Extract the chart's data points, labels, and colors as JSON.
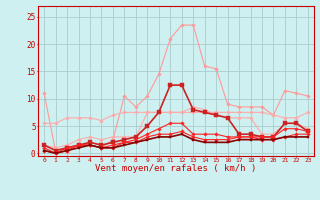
{
  "background_color": "#cef0f0",
  "grid_color": "#aacccc",
  "title": "Vent moyen/en rafales ( km/h )",
  "x_labels": [
    "0",
    "1",
    "2",
    "3",
    "4",
    "5",
    "6",
    "7",
    "8",
    "9",
    "10",
    "11",
    "12",
    "13",
    "14",
    "15",
    "16",
    "17",
    "18",
    "19",
    "20",
    "21",
    "22",
    "23"
  ],
  "ylim": [
    -0.5,
    27
  ],
  "yticks": [
    0,
    5,
    10,
    15,
    20,
    25
  ],
  "series": [
    {
      "color": "#ff9999",
      "lw": 0.8,
      "marker": "D",
      "ms": 1.8,
      "y": [
        11.0,
        0.3,
        0.3,
        1.5,
        1.5,
        1.0,
        2.5,
        10.5,
        8.5,
        10.5,
        14.5,
        21.0,
        23.5,
        23.5,
        16.0,
        15.5,
        9.0,
        8.5,
        8.5,
        8.5,
        7.0,
        11.5,
        11.0,
        10.5
      ]
    },
    {
      "color": "#ffaaaa",
      "lw": 0.8,
      "marker": "D",
      "ms": 1.8,
      "y": [
        5.5,
        5.5,
        6.5,
        6.5,
        6.5,
        6.0,
        7.0,
        7.5,
        7.5,
        7.5,
        7.5,
        7.5,
        7.5,
        7.5,
        7.5,
        7.5,
        7.5,
        7.5,
        7.5,
        7.5,
        7.0,
        6.5,
        6.5,
        7.5
      ]
    },
    {
      "color": "#ffaaaa",
      "lw": 0.8,
      "marker": "D",
      "ms": 1.8,
      "y": [
        1.5,
        1.0,
        1.5,
        2.5,
        3.0,
        2.5,
        3.0,
        3.0,
        3.0,
        7.5,
        7.5,
        7.5,
        7.5,
        8.5,
        8.0,
        7.0,
        6.5,
        6.5,
        6.5,
        3.5,
        3.5,
        5.5,
        5.5,
        4.5
      ]
    },
    {
      "color": "#cc2222",
      "lw": 1.2,
      "marker": "s",
      "ms": 2.2,
      "y": [
        1.5,
        0.5,
        1.0,
        1.5,
        2.0,
        1.5,
        2.0,
        2.5,
        3.0,
        5.0,
        7.5,
        12.5,
        12.5,
        8.0,
        7.5,
        7.0,
        6.5,
        3.5,
        3.5,
        3.0,
        3.0,
        5.5,
        5.5,
        4.0
      ]
    },
    {
      "color": "#ff2222",
      "lw": 0.8,
      "marker": "D",
      "ms": 1.8,
      "y": [
        1.0,
        0.0,
        1.0,
        1.5,
        1.5,
        1.0,
        1.5,
        2.0,
        2.5,
        3.5,
        4.5,
        5.5,
        5.5,
        3.5,
        3.5,
        3.5,
        3.0,
        3.0,
        3.0,
        3.0,
        3.0,
        4.5,
        4.5,
        4.0
      ]
    },
    {
      "color": "#ff2222",
      "lw": 0.8,
      "marker": "D",
      "ms": 1.8,
      "y": [
        0.5,
        0.0,
        0.5,
        1.5,
        1.5,
        1.0,
        1.0,
        2.0,
        2.0,
        3.0,
        3.5,
        3.5,
        4.0,
        3.0,
        2.5,
        2.5,
        2.5,
        3.0,
        3.0,
        2.5,
        2.5,
        3.0,
        3.5,
        3.5
      ]
    },
    {
      "color": "#880000",
      "lw": 1.2,
      "marker": "s",
      "ms": 2.0,
      "y": [
        0.5,
        0.0,
        0.5,
        1.0,
        1.5,
        1.0,
        1.0,
        1.5,
        2.0,
        2.5,
        3.0,
        3.0,
        3.5,
        2.5,
        2.0,
        2.0,
        2.0,
        2.5,
        2.5,
        2.5,
        2.5,
        3.0,
        3.0,
        3.0
      ]
    }
  ]
}
